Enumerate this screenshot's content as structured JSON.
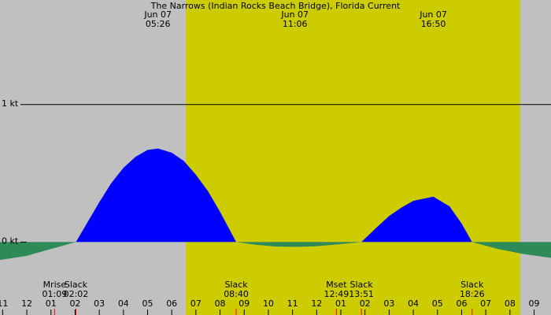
{
  "chart_data": {
    "type": "area",
    "title": "The Narrows (Indian Rocks Beach Bridge), Florida Current",
    "x": [
      -1.11,
      0,
      1,
      2.033,
      3,
      3.5,
      4,
      4.5,
      5,
      5.43,
      6,
      6.5,
      7,
      7.5,
      8,
      8.667,
      9.5,
      10.3,
      11.1,
      12,
      13,
      13.85,
      14.5,
      15,
      15.5,
      16,
      16.83,
      17.5,
      18,
      18.433,
      19.5,
      20.5,
      21.7
    ],
    "values": [
      -0.13,
      -0.1,
      -0.05,
      0,
      0.29,
      0.43,
      0.54,
      0.62,
      0.67,
      0.68,
      0.65,
      0.59,
      0.49,
      0.37,
      0.22,
      0,
      -0.02,
      -0.032,
      -0.035,
      -0.03,
      -0.015,
      0,
      0.11,
      0.19,
      0.25,
      0.3,
      0.33,
      0.26,
      0.135,
      0,
      -0.05,
      -0.085,
      -0.115
    ],
    "flood_color": "#0000ff",
    "ebb_color": "#2e8b57",
    "background": "#c0c0c0",
    "daylight_color": "#cccc00",
    "daylight": [
      6.58,
      20.42
    ],
    "xlim": [
      -1.11,
      21.7
    ],
    "ylim": [
      -0.53,
      1.76
    ],
    "yticks": [
      {
        "value": 0,
        "label": "0 kt"
      },
      {
        "value": 1,
        "label": "1 kt"
      }
    ],
    "xticks": [
      {
        "value": -1,
        "label": "11"
      },
      {
        "value": 0,
        "label": "12"
      },
      {
        "value": 1,
        "label": "01"
      },
      {
        "value": 2,
        "label": "02"
      },
      {
        "value": 3,
        "label": "03"
      },
      {
        "value": 4,
        "label": "04"
      },
      {
        "value": 5,
        "label": "05"
      },
      {
        "value": 6,
        "label": "06"
      },
      {
        "value": 7,
        "label": "07"
      },
      {
        "value": 8,
        "label": "08"
      },
      {
        "value": 9,
        "label": "09"
      },
      {
        "value": 10,
        "label": "10"
      },
      {
        "value": 11,
        "label": "11"
      },
      {
        "value": 12,
        "label": "12"
      },
      {
        "value": 13,
        "label": "01"
      },
      {
        "value": 14,
        "label": "02"
      },
      {
        "value": 15,
        "label": "03"
      },
      {
        "value": 16,
        "label": "04"
      },
      {
        "value": 17,
        "label": "05"
      },
      {
        "value": 18,
        "label": "06"
      },
      {
        "value": 19,
        "label": "07"
      },
      {
        "value": 20,
        "label": "08"
      },
      {
        "value": 21,
        "label": "09"
      }
    ],
    "top_labels": [
      {
        "x": 5.43,
        "date": "Jun 07",
        "time": "05:26"
      },
      {
        "x": 11.1,
        "date": "Jun 07",
        "time": "11:06"
      },
      {
        "x": 16.83,
        "date": "Jun 07",
        "time": "16:50"
      }
    ],
    "events": [
      {
        "x": 1.15,
        "name": "Mrise",
        "time": "01:09"
      },
      {
        "x": 2.033,
        "name": "Slack",
        "time": "02:02"
      },
      {
        "x": 8.667,
        "name": "Slack",
        "time": "08:40"
      },
      {
        "x": 12.817,
        "name": "Mset",
        "time": "12:49"
      },
      {
        "x": 13.85,
        "name": "Slack",
        "time": "13:51"
      },
      {
        "x": 18.433,
        "name": "Slack",
        "time": "18:26"
      }
    ],
    "event_color": "#ff0000"
  }
}
